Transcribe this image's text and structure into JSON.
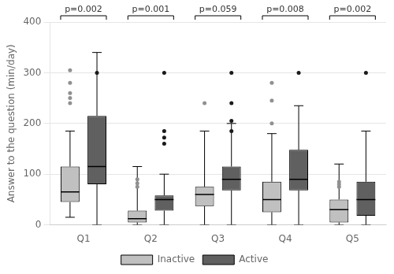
{
  "chart_data": {
    "type": "box",
    "categories": [
      "Q1",
      "Q2",
      "Q3",
      "Q4",
      "Q5"
    ],
    "y_label": "Answer to the question (min/day)",
    "annotations": [
      "p=0.002",
      "p=0.001",
      "p=0.059",
      "p=0.008",
      "p=0.002"
    ],
    "series": [
      {
        "name": "Inactive",
        "color": "#c0c0c0",
        "flier_color": "#909090",
        "values": [
          {
            "med": 65,
            "q1": 45,
            "q3": 115,
            "whislo": 15,
            "whishi": 185,
            "fliers": [
              240,
              250,
              260,
              280,
              305
            ]
          },
          {
            "med": 12,
            "q1": 5,
            "q3": 28,
            "whislo": 0,
            "whishi": 115,
            "fliers": [
              75,
              82,
              90
            ]
          },
          {
            "med": 60,
            "q1": 37,
            "q3": 75,
            "whislo": 0,
            "whishi": 185,
            "fliers": [
              240
            ]
          },
          {
            "med": 50,
            "q1": 25,
            "q3": 85,
            "whislo": 0,
            "whishi": 180,
            "fliers": [
              200,
              245,
              280
            ]
          },
          {
            "med": 30,
            "q1": 5,
            "q3": 50,
            "whislo": 0,
            "whishi": 120,
            "fliers": [
              75,
              80,
              85
            ]
          }
        ]
      },
      {
        "name": "Active",
        "color": "#606060",
        "flier_color": "#1a1a1a",
        "values": [
          {
            "med": 115,
            "q1": 80,
            "q3": 215,
            "whislo": 0,
            "whishi": 340,
            "fliers": [
              300
            ]
          },
          {
            "med": 50,
            "q1": 28,
            "q3": 58,
            "whislo": 0,
            "whishi": 100,
            "fliers": [
              160,
              172,
              185,
              300
            ]
          },
          {
            "med": 90,
            "q1": 68,
            "q3": 115,
            "whislo": 0,
            "whishi": 200,
            "fliers": [
              185,
              205,
              240,
              300
            ]
          },
          {
            "med": 90,
            "q1": 68,
            "q3": 148,
            "whislo": 0,
            "whishi": 235,
            "fliers": [
              300
            ]
          },
          {
            "med": 50,
            "q1": 18,
            "q3": 85,
            "whislo": 0,
            "whishi": 185,
            "fliers": [
              300
            ]
          }
        ]
      }
    ],
    "ylim": [
      0,
      400
    ],
    "yticks": [
      0,
      100,
      200,
      300,
      400
    ],
    "grid": true,
    "legend": "bottom"
  }
}
